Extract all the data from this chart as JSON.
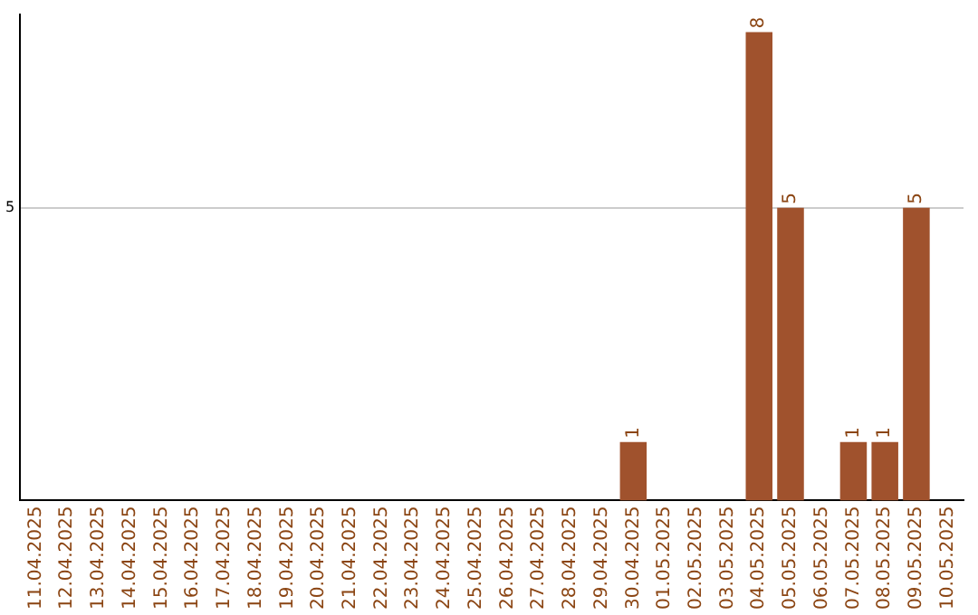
{
  "chart_data": {
    "type": "bar",
    "categories": [
      "11.04.2025",
      "12.04.2025",
      "13.04.2025",
      "14.04.2025",
      "15.04.2025",
      "16.04.2025",
      "17.04.2025",
      "18.04.2025",
      "19.04.2025",
      "20.04.2025",
      "21.04.2025",
      "22.04.2025",
      "23.04.2025",
      "24.04.2025",
      "25.04.2025",
      "26.04.2025",
      "27.04.2025",
      "28.04.2025",
      "29.04.2025",
      "30.04.2025",
      "01.05.2025",
      "02.05.2025",
      "03.05.2025",
      "04.05.2025",
      "05.05.2025",
      "06.05.2025",
      "07.05.2025",
      "08.05.2025",
      "09.05.2025",
      "10.05.2025"
    ],
    "values": [
      null,
      null,
      null,
      null,
      null,
      null,
      null,
      null,
      null,
      null,
      null,
      null,
      null,
      null,
      null,
      null,
      null,
      null,
      null,
      1,
      null,
      null,
      null,
      8,
      5,
      null,
      1,
      1,
      5,
      null
    ],
    "color": "#a0522d",
    "ylim": [
      0,
      8.3
    ],
    "yticks": [
      5
    ],
    "grid": "y",
    "data_labels": true,
    "legend": false
  }
}
